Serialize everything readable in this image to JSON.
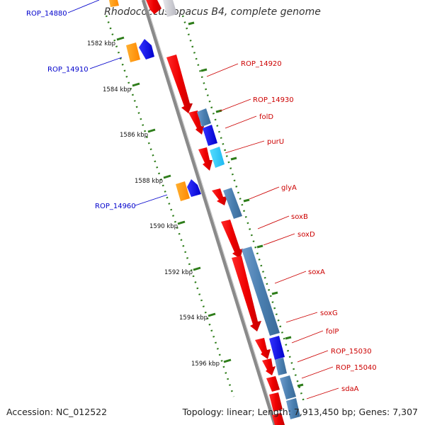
{
  "header": {
    "title": "Rhodococcus opacus B4, complete genome"
  },
  "footer": {
    "accession": "Accession: NC_012522",
    "summary": "Topology: linear; Length: 7,913,450 bp; Genes: 7,307"
  },
  "scale": {
    "ticks": [
      "1582 kbp",
      "1584 kbp",
      "1586 kbp",
      "1588 kbp",
      "1590 kbp",
      "1592 kbp",
      "1594 kbp",
      "1596 kbp"
    ]
  },
  "legend_colors": {
    "axis": "#888888",
    "tick": "#2e7d1a",
    "plus_strand_label": "#cc0000",
    "minus_strand_label": "#0000cc",
    "cds": "#ee0000",
    "gene_blue": "#0000ee",
    "gene_steel": "#4a7fb0",
    "gene_orange": "#ff9900",
    "gene_cyan": "#33ccff"
  },
  "genes": {
    "right": [
      "ROP_14920",
      "ROP_14930",
      "folD",
      "purU",
      "glyA",
      "soxB",
      "soxD",
      "soxA",
      "soxG",
      "folP",
      "ROP_15030",
      "ROP_15040",
      "sdaA"
    ],
    "left": [
      "ROP_14880",
      "ROP_14910",
      "ROP_14960"
    ]
  }
}
